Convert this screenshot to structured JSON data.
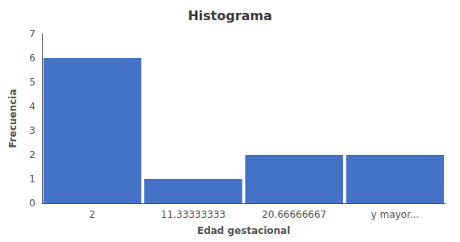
{
  "chart_data": {
    "type": "bar",
    "title": "Histograma",
    "xlabel": "Edad gestacional",
    "ylabel": "Frecuencia",
    "categories": [
      "2",
      "11.33333333",
      "20.66666667",
      "y mayor..."
    ],
    "values": [
      6,
      1,
      2,
      2
    ],
    "color": "#4472C4",
    "ylim": [
      0,
      7
    ],
    "yticks": [
      0,
      1,
      2,
      3,
      4,
      5,
      6,
      7
    ],
    "grid": false
  }
}
